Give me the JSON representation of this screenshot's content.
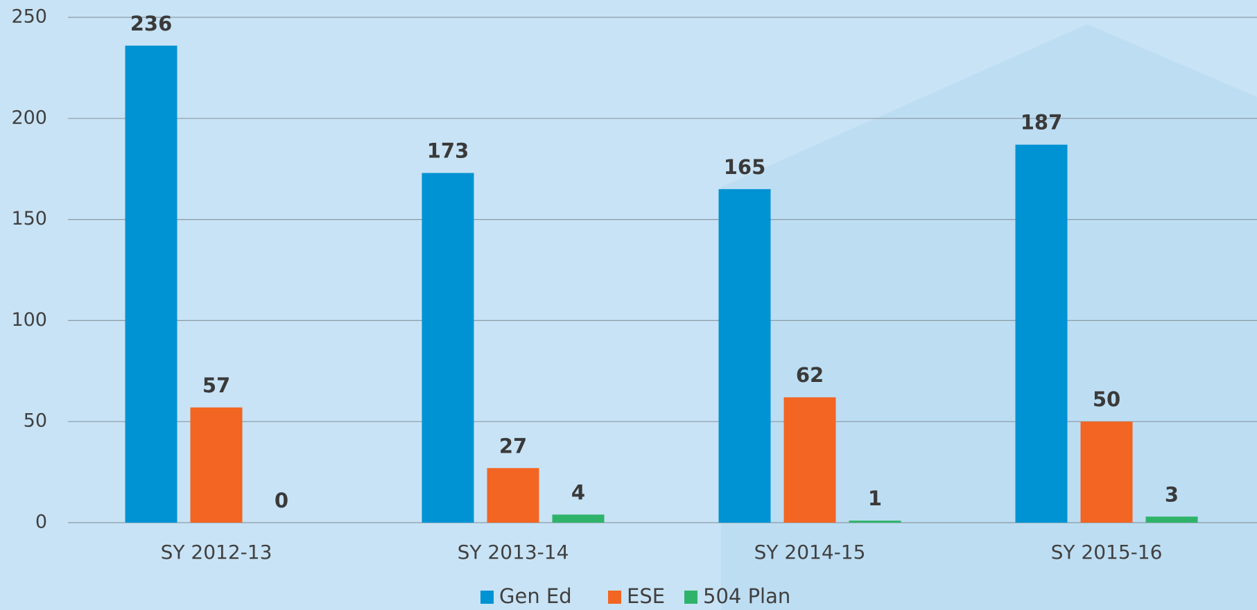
{
  "chart_data": {
    "type": "bar",
    "categories": [
      "SY 2012-13",
      "SY 2013-14",
      "SY 2014-15",
      "SY 2015-16"
    ],
    "series": [
      {
        "name": "Gen Ed",
        "color": "#0093d3",
        "values": [
          236,
          173,
          165,
          187
        ]
      },
      {
        "name": "ESE",
        "color": "#f26522",
        "values": [
          57,
          27,
          62,
          50
        ]
      },
      {
        "name": "504 Plan",
        "color": "#2fb36a",
        "values": [
          0,
          4,
          1,
          3
        ]
      }
    ],
    "ylim": [
      0,
      250
    ],
    "yticks": [
      0,
      50,
      100,
      150,
      200,
      250
    ],
    "grid": true,
    "legend": "bottom"
  }
}
